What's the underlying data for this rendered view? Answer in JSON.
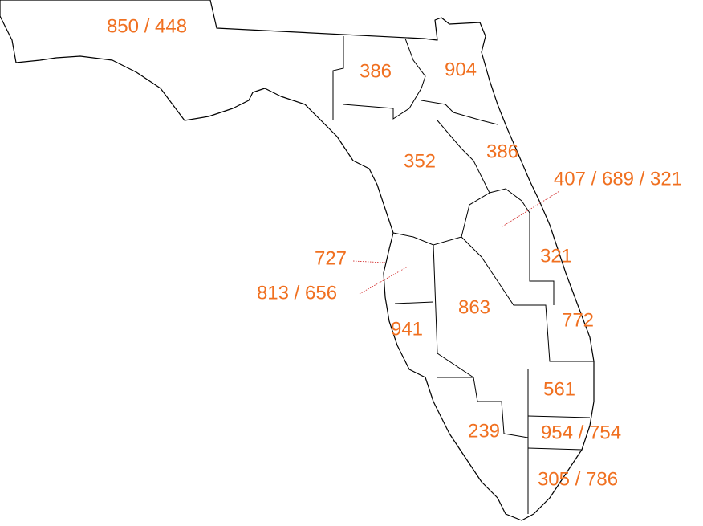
{
  "regions": [
    {
      "label": "850 / 448"
    },
    {
      "label": "386"
    },
    {
      "label": "904"
    },
    {
      "label": "386"
    },
    {
      "label": "352"
    },
    {
      "label": "407 / 689 / 321"
    },
    {
      "label": "321"
    },
    {
      "label": "727"
    },
    {
      "label": "813 / 656"
    },
    {
      "label": "863"
    },
    {
      "label": "941"
    },
    {
      "label": "772"
    },
    {
      "label": "561"
    },
    {
      "label": "239"
    },
    {
      "label": "954 / 754"
    },
    {
      "label": "305 / 786"
    }
  ]
}
